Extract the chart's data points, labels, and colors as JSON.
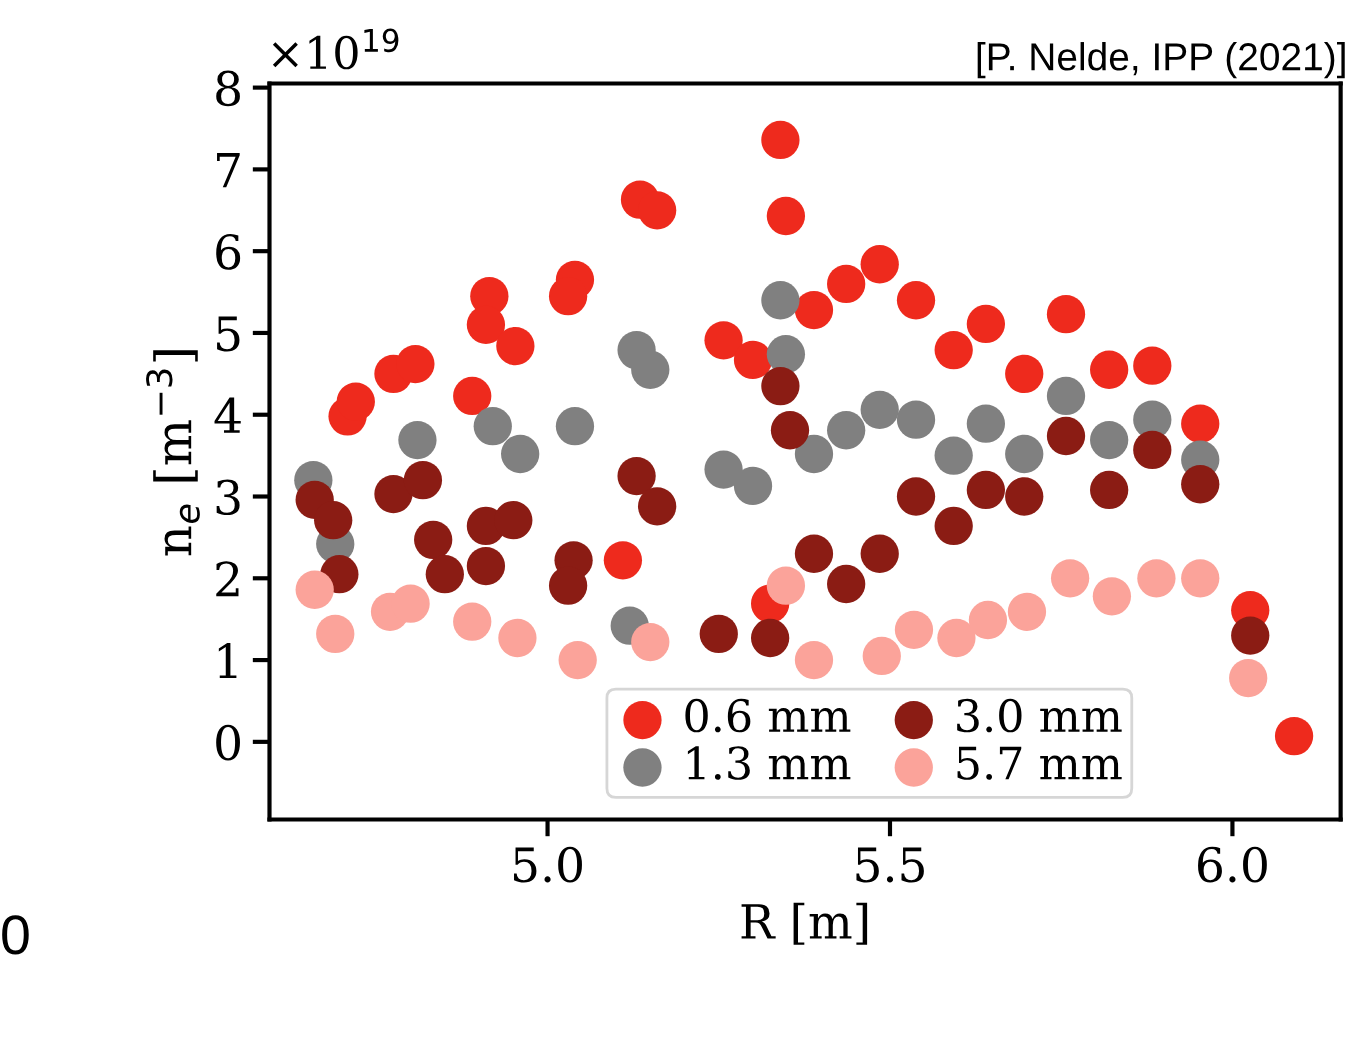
{
  "chart_data": {
    "type": "scatter",
    "xlabel": "R [m]",
    "ylabel": "n$_{e}$ [m$^{−3}$]",
    "annotations": [
      "×10$^{19}$",
      "[P. Nelde, IPP (2021)]",
      "0"
    ],
    "xlim": [
      4.594,
      6.158
    ],
    "xticks": [
      {
        "value": 5.0,
        "label": "5.0"
      },
      {
        "value": 5.5,
        "label": "5.5"
      },
      {
        "value": 6.0,
        "label": "6.0"
      }
    ],
    "ylim": [
      -0.95,
      8.05
    ],
    "yticks": [
      0,
      1,
      2,
      3,
      4,
      5,
      6,
      7,
      8
    ],
    "grid": false,
    "legend": "bottom",
    "marker": "circle",
    "series": [
      {
        "name": "0.6 mm",
        "color": "#ee2a1d",
        "x": [
          4.708,
          4.72,
          4.775,
          4.807,
          4.89,
          4.915,
          4.91,
          4.953,
          5.04,
          5.03,
          5.135,
          5.16,
          5.11,
          5.257,
          5.3,
          5.34,
          5.348,
          5.325,
          5.389,
          5.436,
          5.485,
          5.538,
          5.593,
          5.64,
          5.696,
          5.757,
          5.82,
          5.883,
          5.953,
          6.026,
          6.09
        ],
        "values": [
          3.98,
          4.16,
          4.5,
          4.62,
          4.23,
          5.45,
          5.1,
          4.84,
          5.65,
          5.45,
          6.63,
          6.5,
          2.22,
          4.91,
          4.67,
          7.36,
          6.43,
          1.69,
          5.28,
          5.6,
          5.84,
          5.4,
          4.79,
          5.11,
          4.5,
          5.23,
          4.55,
          4.6,
          3.89,
          1.61,
          0.07
        ]
      },
      {
        "name": "1.3 mm",
        "color": "#808080",
        "x": [
          4.658,
          4.69,
          4.81,
          4.92,
          4.96,
          5.04,
          5.13,
          5.15,
          5.257,
          5.3,
          5.34,
          5.348,
          5.12,
          5.389,
          5.436,
          5.485,
          5.538,
          5.593,
          5.64,
          5.696,
          5.757,
          5.82,
          5.883,
          5.953
        ],
        "values": [
          3.2,
          2.42,
          3.69,
          3.86,
          3.52,
          3.86,
          4.79,
          4.55,
          3.33,
          3.13,
          5.4,
          4.74,
          1.42,
          3.52,
          3.81,
          4.06,
          3.94,
          3.5,
          3.89,
          3.52,
          4.23,
          3.69,
          3.94,
          3.45
        ]
      },
      {
        "name": "3.0 mm",
        "color": "#8b1c14",
        "x": [
          4.66,
          4.687,
          4.696,
          4.775,
          4.818,
          4.833,
          4.85,
          4.91,
          4.95,
          4.91,
          5.038,
          5.03,
          5.13,
          5.16,
          5.34,
          5.354,
          5.25,
          5.325,
          5.389,
          5.436,
          5.485,
          5.538,
          5.593,
          5.64,
          5.696,
          5.757,
          5.82,
          5.883,
          5.953,
          6.026
        ],
        "values": [
          2.96,
          2.71,
          2.05,
          3.03,
          3.2,
          2.47,
          2.05,
          2.64,
          2.71,
          2.15,
          2.22,
          1.91,
          3.25,
          2.88,
          4.35,
          3.81,
          1.32,
          1.27,
          2.3,
          1.93,
          2.3,
          3.0,
          2.64,
          3.08,
          3.0,
          3.74,
          3.08,
          3.57,
          3.15,
          1.3
        ]
      },
      {
        "name": "5.7 mm",
        "color": "#fba39a",
        "x": [
          4.66,
          4.69,
          4.77,
          4.8,
          4.89,
          4.956,
          5.044,
          5.15,
          5.348,
          5.389,
          5.488,
          5.535,
          5.597,
          5.643,
          5.7,
          5.763,
          5.824,
          5.889,
          5.953,
          6.023
        ],
        "values": [
          1.86,
          1.32,
          1.59,
          1.69,
          1.47,
          1.27,
          1.0,
          1.22,
          1.91,
          1.0,
          1.05,
          1.37,
          1.27,
          1.49,
          1.59,
          2.0,
          1.78,
          2.0,
          2.0,
          0.78
        ]
      }
    ]
  }
}
